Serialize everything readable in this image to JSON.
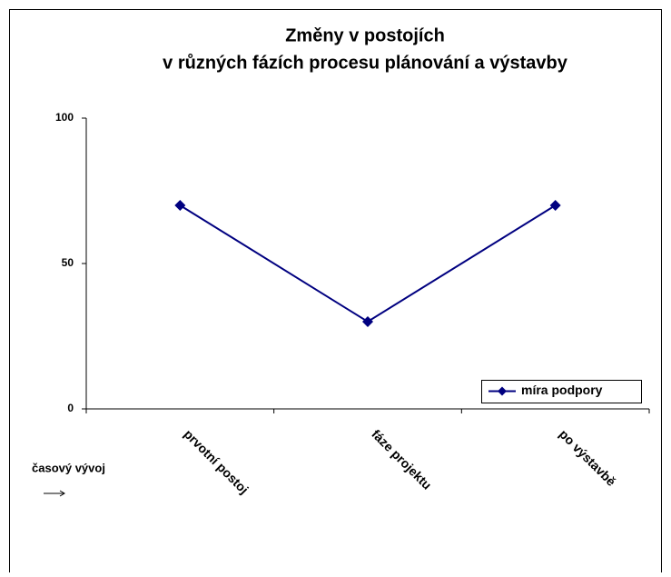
{
  "chart_data": {
    "type": "line",
    "title": [
      "Změny v postojích",
      "v různých fázích procesu plánování a výstavby"
    ],
    "x_label": "časový vývoj",
    "categories": [
      "prvotní postoj",
      "fáze projektu",
      "po výstavbě"
    ],
    "series": [
      {
        "name": "míra podpory",
        "color": "#000080",
        "values": [
          70,
          30,
          70
        ]
      }
    ],
    "ylim": [
      0,
      100
    ],
    "yticks": [
      0,
      50,
      100
    ],
    "grid": false,
    "legend": "lower right"
  }
}
